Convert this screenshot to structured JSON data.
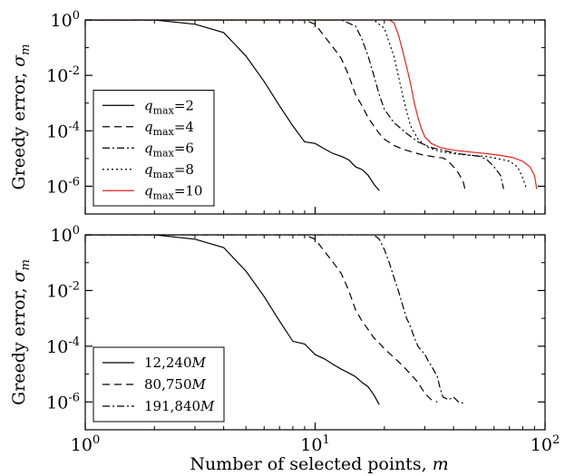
{
  "figure": {
    "xlabel_text": "Number of selected points, ",
    "xlabel_var": "m"
  },
  "chart_data": [
    {
      "type": "line",
      "xscale": "log",
      "yscale": "log",
      "xlim": [
        1,
        100
      ],
      "ylim": [
        1e-07,
        1
      ],
      "xticks": [
        {
          "value": 1,
          "base": "10",
          "exp": "0"
        },
        {
          "value": 10,
          "base": "10",
          "exp": "1"
        },
        {
          "value": 100,
          "base": "10",
          "exp": "2"
        }
      ],
      "yticks": [
        {
          "value": 1,
          "base": "10",
          "exp": "0"
        },
        {
          "value": 0.01,
          "base": "10",
          "exp": "-2"
        },
        {
          "value": 0.0001,
          "base": "10",
          "exp": "-4"
        },
        {
          "value": 1e-06,
          "base": "10",
          "exp": "-6"
        }
      ],
      "ylabel_text": "Greedy error, ",
      "ylabel_var": "σ",
      "ylabel_sub": "m",
      "legend_position": "lower-left",
      "series": [
        {
          "label_var": "q",
          "label_sub": "max",
          "label_val": "=2",
          "color": "#000000",
          "dash": "",
          "x": [
            1,
            2,
            3,
            4,
            5,
            6,
            7,
            8,
            9,
            10,
            11,
            12,
            13,
            14,
            15,
            16,
            17,
            18,
            19
          ],
          "y": [
            1,
            1,
            0.7,
            0.35,
            0.05,
            0.006,
            0.0008,
            0.00015,
            4e-05,
            3.5e-05,
            2.2e-05,
            1.5e-05,
            1.2e-05,
            9e-06,
            5e-06,
            4e-06,
            2.5e-06,
            1.2e-06,
            7e-07
          ]
        },
        {
          "label_var": "q",
          "label_sub": "max",
          "label_val": "=4",
          "color": "#000000",
          "dash": "8,5",
          "x": [
            1,
            9,
            10,
            11,
            12,
            13,
            14,
            15,
            16,
            17,
            18,
            19,
            20,
            22,
            24,
            26,
            28,
            30,
            32,
            34,
            36,
            38,
            40,
            42,
            44,
            45
          ],
          "y": [
            1,
            1,
            0.7,
            0.25,
            0.1,
            0.04,
            0.01,
            0.002,
            0.0008,
            0.0003,
            0.00015,
            8e-05,
            5e-05,
            3e-05,
            2.2e-05,
            1.8e-05,
            1.5e-05,
            1.3e-05,
            1.2e-05,
            1.1e-05,
            1.05e-05,
            8e-06,
            5e-06,
            3e-06,
            1.5e-06,
            7e-07
          ]
        },
        {
          "label_var": "q",
          "label_sub": "max",
          "label_val": "=6",
          "color": "#000000",
          "dash": "8,3,2,3",
          "x": [
            1,
            13,
            15,
            16,
            17,
            18,
            19,
            20,
            22,
            25,
            28,
            32,
            38,
            42,
            45,
            48,
            52,
            56,
            60,
            64,
            66
          ],
          "y": [
            1,
            1,
            0.6,
            0.2,
            0.05,
            0.01,
            0.002,
            0.0006,
            0.0002,
            8e-05,
            4e-05,
            2.5e-05,
            1.8e-05,
            1.5e-05,
            1.4e-05,
            1.3e-05,
            1.2e-05,
            9e-06,
            5e-06,
            2.5e-06,
            8e-07
          ]
        },
        {
          "label_var": "q",
          "label_sub": "max",
          "label_val": "=8",
          "color": "#000000",
          "dash": "2,3",
          "x": [
            1,
            18,
            20,
            21,
            22,
            23,
            24,
            25,
            26,
            28,
            31,
            35,
            40,
            48,
            55,
            62,
            70,
            76,
            80,
            83
          ],
          "y": [
            1,
            1,
            0.5,
            0.15,
            0.05,
            0.01,
            0.002,
            0.0005,
            0.00015,
            5e-05,
            2.5e-05,
            1.8e-05,
            1.5e-05,
            1.3e-05,
            1.2e-05,
            1e-05,
            8e-06,
            5e-06,
            2e-06,
            8e-07
          ]
        },
        {
          "label_var": "q",
          "label_sub": "max",
          "label_val": "=10",
          "color": "#e8211c",
          "dash": "",
          "x": [
            1,
            21,
            22,
            23,
            24,
            25,
            26,
            27,
            28,
            29,
            30,
            32,
            35,
            40,
            48,
            56,
            64,
            72,
            80,
            86,
            90,
            92
          ],
          "y": [
            1,
            1,
            0.8,
            0.3,
            0.08,
            0.02,
            0.005,
            0.001,
            0.0003,
            0.00012,
            6e-05,
            3.5e-05,
            2.5e-05,
            2e-05,
            1.7e-05,
            1.5e-05,
            1.3e-05,
            1.1e-05,
            8e-06,
            5e-06,
            2.5e-06,
            8e-07
          ]
        }
      ]
    },
    {
      "type": "line",
      "xscale": "log",
      "yscale": "log",
      "xlim": [
        1,
        100
      ],
      "ylim": [
        1e-07,
        1
      ],
      "xticks": [
        {
          "value": 1,
          "base": "10",
          "exp": "0"
        },
        {
          "value": 10,
          "base": "10",
          "exp": "1"
        },
        {
          "value": 100,
          "base": "10",
          "exp": "2"
        }
      ],
      "yticks": [
        {
          "value": 1,
          "base": "10",
          "exp": "0"
        },
        {
          "value": 0.01,
          "base": "10",
          "exp": "-2"
        },
        {
          "value": 0.0001,
          "base": "10",
          "exp": "-4"
        },
        {
          "value": 1e-06,
          "base": "10",
          "exp": "-6"
        }
      ],
      "ylabel_text": "Greedy error, ",
      "ylabel_var": "σ",
      "ylabel_sub": "m",
      "legend_position": "lower-left",
      "series": [
        {
          "label_var": "",
          "label_sub": "",
          "label_val": "12,240M",
          "color": "#000000",
          "dash": "",
          "x": [
            1,
            2,
            3,
            4,
            5,
            6,
            7,
            8,
            9,
            10,
            11,
            12,
            13,
            14,
            15,
            16,
            17,
            18,
            19
          ],
          "y": [
            1,
            1,
            0.7,
            0.35,
            0.05,
            0.006,
            0.0008,
            0.00015,
            0.00012,
            5e-05,
            3.5e-05,
            2.2e-05,
            1.5e-05,
            1.1e-05,
            8e-06,
            5e-06,
            3.5e-06,
            1.8e-06,
            8e-07
          ]
        },
        {
          "label_var": "",
          "label_sub": "",
          "label_val": "80,750M",
          "color": "#000000",
          "dash": "8,5",
          "x": [
            1,
            9,
            10,
            11,
            12,
            13,
            14,
            15,
            16,
            17,
            18,
            19,
            20,
            22,
            24,
            26,
            28,
            30,
            32,
            34
          ],
          "y": [
            1,
            1,
            0.7,
            0.25,
            0.1,
            0.04,
            0.01,
            0.002,
            0.0008,
            0.0004,
            0.0002,
            0.00013,
            8e-05,
            4e-05,
            2e-05,
            1e-05,
            5e-06,
            2e-06,
            1.2e-06,
            1e-06
          ]
        },
        {
          "label_var": "",
          "label_sub": "",
          "label_val": "191,840M",
          "color": "#000000",
          "dash": "8,3,2,3",
          "x": [
            1,
            18,
            19,
            20,
            21,
            22,
            23,
            24,
            25,
            26,
            27,
            28,
            29,
            30,
            31,
            32,
            34,
            35,
            36,
            38,
            40,
            42,
            44
          ],
          "y": [
            1,
            1,
            0.7,
            0.3,
            0.1,
            0.03,
            0.01,
            0.003,
            0.001,
            0.0005,
            0.0002,
            0.0001,
            7e-05,
            5e-05,
            3e-05,
            2e-05,
            8e-06,
            3e-06,
            1.5e-06,
            1.2e-06,
            1.5e-06,
            1e-06,
            9e-07
          ]
        }
      ]
    }
  ]
}
